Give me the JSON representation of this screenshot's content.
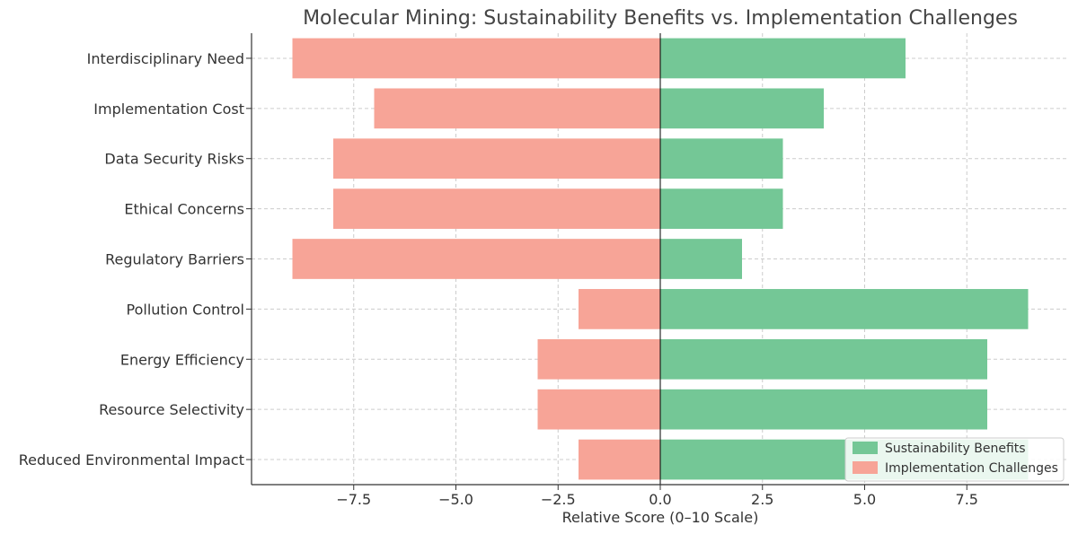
{
  "chart_data": {
    "type": "bar",
    "orientation": "horizontal-diverging",
    "title": "Molecular Mining: Sustainability Benefits vs. Implementation Challenges",
    "xlabel": "Relative Score (0–10 Scale)",
    "ylabel": "",
    "categories": [
      "Reduced Environmental Impact",
      "Resource Selectivity",
      "Energy Efficiency",
      "Pollution Control",
      "Regulatory Barriers",
      "Ethical Concerns",
      "Data Security Risks",
      "Implementation Cost",
      "Interdisciplinary Need"
    ],
    "series": [
      {
        "name": "Sustainability Benefits",
        "values": [
          9,
          8,
          8,
          9,
          2,
          3,
          3,
          4,
          6
        ],
        "color": "#74c796"
      },
      {
        "name": "Implementation Challenges",
        "values": [
          -2,
          -3,
          -3,
          -2,
          -9,
          -8,
          -8,
          -7,
          -9
        ],
        "color": "#f7a497"
      }
    ],
    "xlim": [
      -10,
      10
    ],
    "xticks": [
      -7.5,
      -5.0,
      -2.5,
      0.0,
      2.5,
      5.0,
      7.5
    ],
    "xtick_labels": [
      "−7.5",
      "−5.0",
      "−2.5",
      "0.0",
      "2.5",
      "5.0",
      "7.5"
    ],
    "grid": true,
    "legend_position": "bottom-right"
  }
}
